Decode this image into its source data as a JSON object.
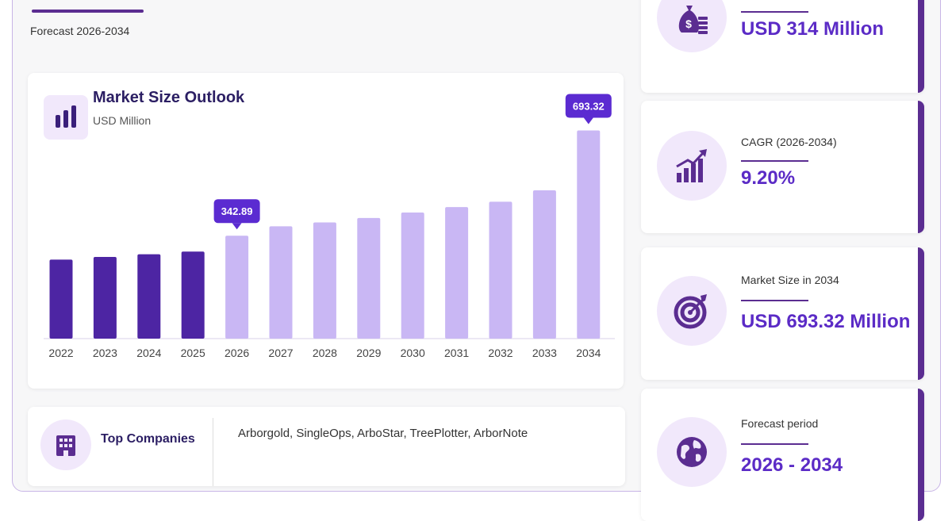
{
  "header": {
    "forecast_label": "Forecast 2026-2034"
  },
  "chart_card": {
    "title": "Market Size Outlook",
    "subtitle": "USD Million"
  },
  "chart_data": {
    "type": "bar",
    "title": "Market Size Outlook",
    "ylabel": "USD Million",
    "categories": [
      "2022",
      "2023",
      "2024",
      "2025",
      "2026",
      "2027",
      "2028",
      "2029",
      "2030",
      "2031",
      "2032",
      "2033",
      "2034"
    ],
    "values": [
      263,
      272,
      281,
      290,
      342.89,
      374,
      387,
      402,
      420,
      438,
      456,
      494,
      693.32
    ],
    "ylim": [
      0,
      700
    ],
    "historical_color": "#4d25a3",
    "forecast_color": "#c9b7f4",
    "callouts": [
      {
        "category": "2026",
        "label": "342.89"
      },
      {
        "category": "2034",
        "label": "693.32"
      }
    ],
    "callout_color": "#5b2bd1"
  },
  "companies": {
    "title": "Top Companies",
    "list": "Arborgold, SingleOps, ArboStar, TreePlotter, ArborNote",
    "icon": "building-icon"
  },
  "stats": [
    {
      "label": "",
      "value": "USD 314 Million",
      "icon": "money-bag-icon"
    },
    {
      "label": "CAGR (2026-2034)",
      "value": "9.20%",
      "icon": "growth-chart-icon"
    },
    {
      "label": "Market Size in 2034",
      "value": "USD 693.32 Million",
      "icon": "target-icon"
    },
    {
      "label": "Forecast period",
      "value": "2026 - 2034",
      "icon": "globe-icon"
    }
  ],
  "colors": {
    "accent": "#5b2d91",
    "value_text": "#5b2bc6",
    "icon_bg": "#f1e8fb"
  }
}
